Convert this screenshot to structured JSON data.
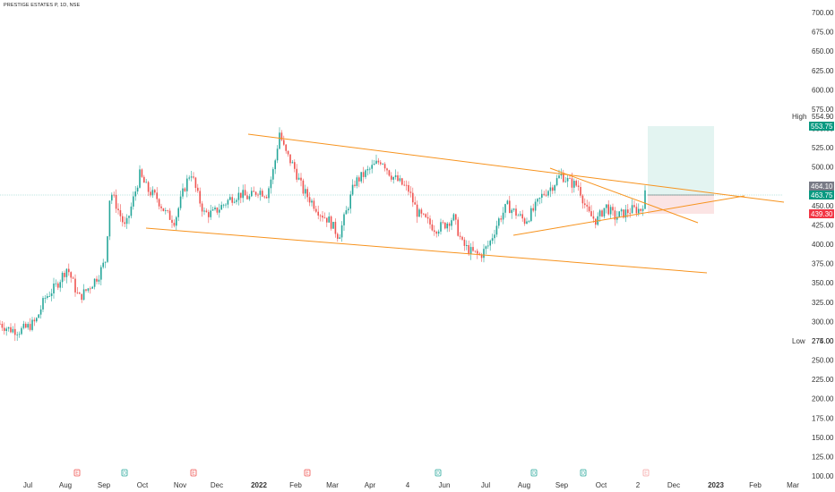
{
  "symbol_title": "PRESTIGE ESTATES P, 1D, NSE",
  "colors": {
    "up": "#26a69a",
    "down": "#ef5350",
    "trend": "#f7931e",
    "profit_zone": "#e3f4f1",
    "loss_zone": "#fbe4e4",
    "target_line": "#bfe3dc",
    "stop_line": "#f5c8c8",
    "current_price_line": "#26a69a",
    "event_red": "#ef5350",
    "event_green": "#26a69a",
    "grey_tag": "#787b86",
    "green_tag": "#089981",
    "red_tag": "#f23645"
  },
  "price_axis": {
    "labels": [
      "700.00",
      "675.00",
      "650.00",
      "625.00",
      "600.00",
      "575.00",
      "550.00",
      "525.00",
      "500.00",
      "475.00",
      "450.00",
      "425.00",
      "400.00",
      "375.00",
      "350.00",
      "325.00",
      "300.00",
      "275.00",
      "250.00",
      "225.00",
      "200.00",
      "175.00",
      "150.00",
      "125.00",
      "100.00"
    ],
    "high_label": "High",
    "high_value": "554.90",
    "low_label": "Low",
    "low_value": "274.00",
    "tags": [
      {
        "value": "553.75",
        "kind": "green"
      },
      {
        "value": "464.10",
        "kind": "grey"
      },
      {
        "value": "463.75",
        "kind": "green"
      },
      {
        "value": "439.30",
        "kind": "red"
      }
    ]
  },
  "time_axis": {
    "labels": [
      {
        "text": "Jul",
        "bold": false
      },
      {
        "text": "Aug",
        "bold": false
      },
      {
        "text": "Sep",
        "bold": false
      },
      {
        "text": "Oct",
        "bold": false
      },
      {
        "text": "Nov",
        "bold": false
      },
      {
        "text": "Dec",
        "bold": false
      },
      {
        "text": "2022",
        "bold": true
      },
      {
        "text": "Feb",
        "bold": false
      },
      {
        "text": "Mar",
        "bold": false
      },
      {
        "text": "Apr",
        "bold": false
      },
      {
        "text": "4",
        "bold": false
      },
      {
        "text": "Jun",
        "bold": false
      },
      {
        "text": "Jul",
        "bold": false
      },
      {
        "text": "Aug",
        "bold": false
      },
      {
        "text": "Sep",
        "bold": false
      },
      {
        "text": "Oct",
        "bold": false
      },
      {
        "text": "2",
        "bold": false
      },
      {
        "text": "Dec",
        "bold": false
      },
      {
        "text": "2023",
        "bold": true
      },
      {
        "text": "Feb",
        "bold": false
      },
      {
        "text": "Mar",
        "bold": false
      }
    ]
  },
  "event_markers": [
    {
      "kind": "E",
      "color": "red"
    },
    {
      "kind": "D",
      "color": "green"
    },
    {
      "kind": "E",
      "color": "red"
    },
    {
      "kind": "E",
      "color": "red"
    },
    {
      "kind": "D",
      "color": "green"
    },
    {
      "kind": "D",
      "color": "green"
    },
    {
      "kind": "D",
      "color": "green"
    },
    {
      "kind": "E",
      "color": "red_light"
    }
  ],
  "chart_data": {
    "type": "candlestick",
    "title": "PRESTIGE ESTATES P, 1D, NSE",
    "ylim": [
      100,
      710
    ],
    "series_close_approx": [
      {
        "date": "2021-07",
        "close": 290
      },
      {
        "date": "2021-08",
        "close": 350
      },
      {
        "date": "2021-09-10",
        "close": 470
      },
      {
        "date": "2021-10",
        "close": 480
      },
      {
        "date": "2021-11",
        "close": 440
      },
      {
        "date": "2021-12",
        "close": 460
      },
      {
        "date": "2022-01-25",
        "close": 545
      },
      {
        "date": "2022-02",
        "close": 500
      },
      {
        "date": "2022-03",
        "close": 420
      },
      {
        "date": "2022-04",
        "close": 510
      },
      {
        "date": "2022-05",
        "close": 450
      },
      {
        "date": "2022-06",
        "close": 410
      },
      {
        "date": "2022-07",
        "close": 400
      },
      {
        "date": "2022-08",
        "close": 460
      },
      {
        "date": "2022-09",
        "close": 490
      },
      {
        "date": "2022-10",
        "close": 440
      },
      {
        "date": "2022-11",
        "close": 463.75
      }
    ],
    "position": {
      "target": 553.75,
      "entry": 464.1,
      "stop": 439.3
    },
    "high": 554.9,
    "low": 274.0,
    "last": 463.75
  }
}
